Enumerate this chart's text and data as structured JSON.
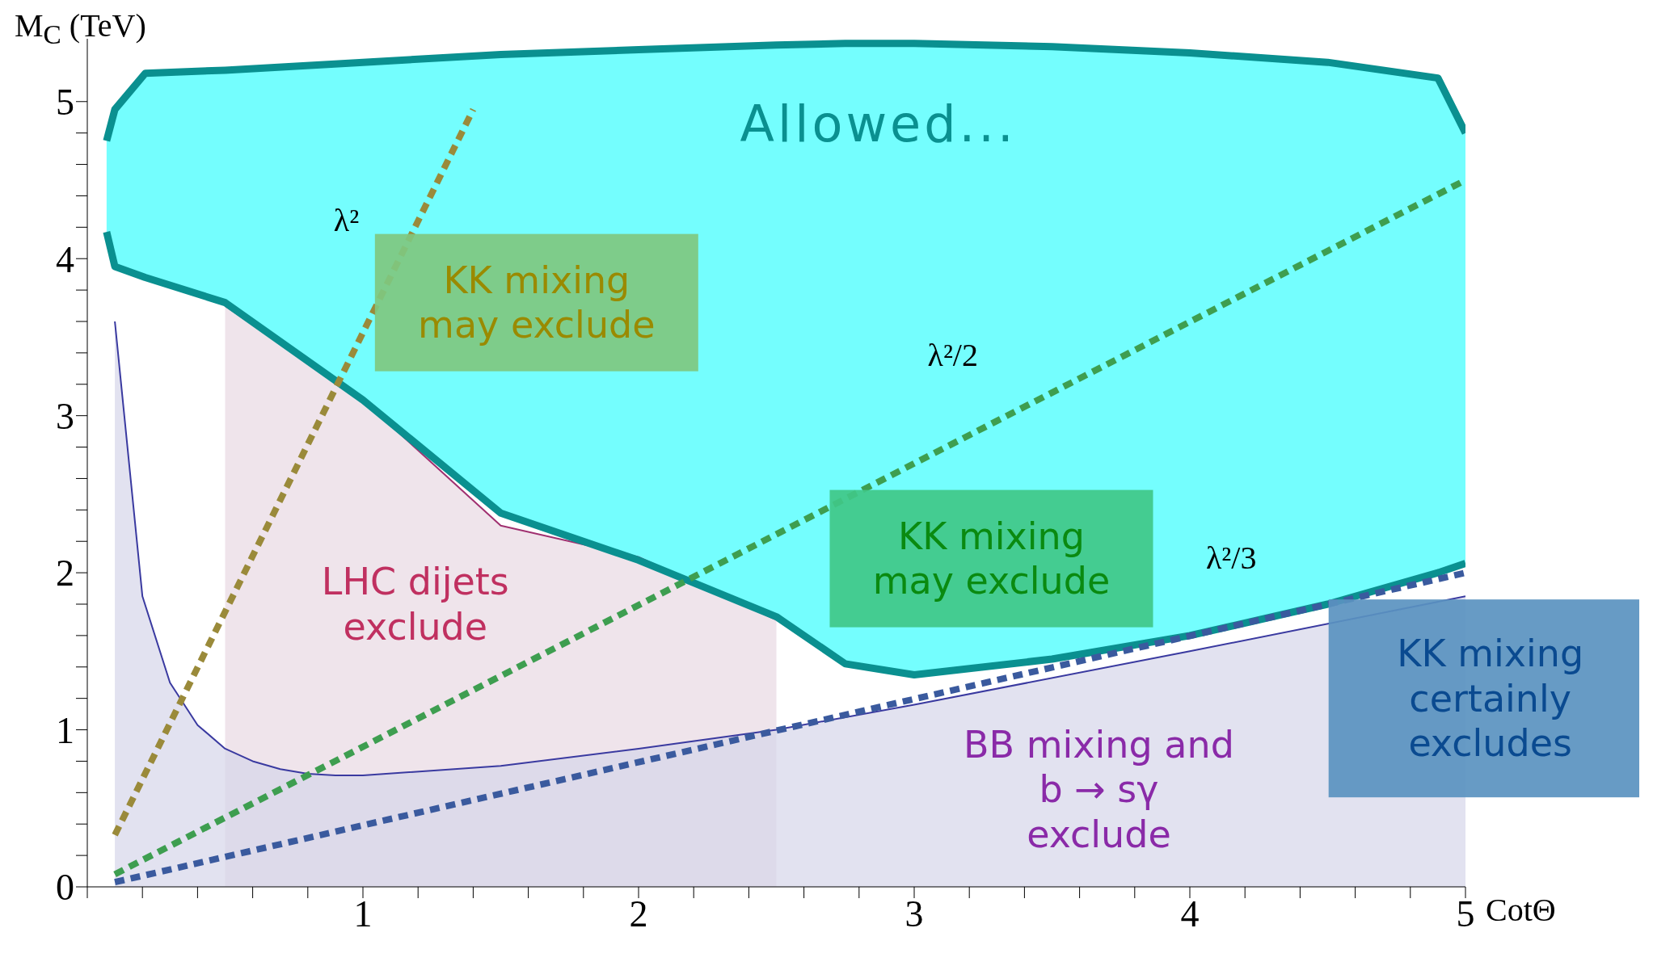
{
  "chart_data": {
    "type": "line",
    "xlabel": "CotΘ",
    "ylabel": "M$_{C}$ (TeV)",
    "xlim": [
      0,
      5
    ],
    "ylim": [
      0,
      5.4
    ],
    "xticks": [
      {
        "value": 0,
        "label": null
      },
      {
        "value": 0.2,
        "label": null
      },
      {
        "value": 0.4,
        "label": null
      },
      {
        "value": 0.6,
        "label": null
      },
      {
        "value": 0.8,
        "label": null
      },
      1,
      {
        "value": 1.2,
        "label": null
      },
      {
        "value": 1.4,
        "label": null
      },
      {
        "value": 1.6,
        "label": null
      },
      {
        "value": 1.8,
        "label": null
      },
      2,
      {
        "value": 2.2,
        "label": null
      },
      {
        "value": 2.4,
        "label": null
      },
      {
        "value": 2.6,
        "label": null
      },
      {
        "value": 2.8,
        "label": null
      },
      3,
      {
        "value": 3.2,
        "label": null
      },
      {
        "value": 3.4,
        "label": null
      },
      {
        "value": 3.6,
        "label": null
      },
      {
        "value": 3.8,
        "label": null
      },
      4,
      {
        "value": 4.2,
        "label": null
      },
      {
        "value": 4.4,
        "label": null
      },
      {
        "value": 4.6,
        "label": null
      },
      {
        "value": 4.8,
        "label": null
      },
      5
    ],
    "yticks": [
      0,
      {
        "value": 0.2,
        "label": null
      },
      {
        "value": 0.4,
        "label": null
      },
      {
        "value": 0.6,
        "label": null
      },
      {
        "value": 0.8,
        "label": null
      },
      1,
      {
        "value": 1.2,
        "label": null
      },
      {
        "value": 1.4,
        "label": null
      },
      {
        "value": 1.6,
        "label": null
      },
      {
        "value": 1.8,
        "label": null
      },
      2,
      {
        "value": 2.2,
        "label": null
      },
      {
        "value": 2.4,
        "label": null
      },
      {
        "value": 2.6,
        "label": null
      },
      {
        "value": 2.8,
        "label": null
      },
      3,
      {
        "value": 3.2,
        "label": null
      },
      {
        "value": 3.4,
        "label": null
      },
      {
        "value": 3.6,
        "label": null
      },
      {
        "value": 3.8,
        "label": null
      },
      4,
      {
        "value": 4.2,
        "label": null
      },
      {
        "value": 4.4,
        "label": null
      },
      {
        "value": 4.6,
        "label": null
      },
      {
        "value": 4.8,
        "label": null
      },
      5
    ],
    "grid": false,
    "legend": false,
    "marker": "none",
    "series": [
      {
        "type": "line",
        "color": "#0a9090",
        "x": [
          0.07,
          0.1,
          0.21,
          0.5,
          1.0,
          1.5,
          2.0,
          2.5,
          2.75,
          3.0,
          3.5,
          4.0,
          4.5,
          4.9,
          5.0
        ],
        "values": [
          4.75,
          4.95,
          5.18,
          5.2,
          5.25,
          5.3,
          5.33,
          5.36,
          5.37,
          5.37,
          5.35,
          5.31,
          5.25,
          5.15,
          4.8
        ]
      },
      {
        "type": "line",
        "color": "#0a9090",
        "x": [
          0.07,
          0.1,
          0.21,
          0.5,
          1.0,
          1.5,
          2.0,
          2.5,
          2.75,
          3.0,
          3.5,
          4.0,
          4.5,
          4.9,
          5.0
        ],
        "values": [
          4.17,
          3.95,
          3.88,
          3.72,
          3.1,
          2.38,
          2.08,
          1.72,
          1.42,
          1.35,
          1.45,
          1.6,
          1.8,
          2.0,
          2.06
        ],
        "lower": [
          4.17,
          3.95,
          3.88,
          3.72,
          3.1,
          2.38,
          2.08,
          1.72,
          1.42,
          1.35,
          1.45,
          1.6,
          1.8,
          2.0,
          2.06
        ],
        "upper": [
          4.75,
          4.95,
          5.18,
          5.2,
          5.25,
          5.3,
          5.33,
          5.36,
          5.37,
          5.37,
          5.35,
          5.31,
          5.25,
          5.15,
          4.8
        ]
      },
      {
        "type": "area",
        "color": "#e8d8e2",
        "x": [
          0.5,
          1.0,
          1.5,
          2.0,
          2.5
        ],
        "values": [
          3.7,
          3.1,
          2.3,
          2.1,
          1.7
        ]
      },
      {
        "type": "area",
        "color": "#d6d6ea",
        "x": [
          0.1,
          0.2,
          0.3,
          0.4,
          0.5,
          0.6,
          0.7,
          0.8,
          0.9,
          1.0,
          1.5,
          2.0,
          2.5,
          3.0,
          4.0,
          5.0
        ],
        "values": [
          3.6,
          1.85,
          1.3,
          1.03,
          0.88,
          0.8,
          0.75,
          0.72,
          0.71,
          0.71,
          0.77,
          0.88,
          1.0,
          1.16,
          1.5,
          1.85
        ]
      },
      {
        "type": "line",
        "color": "#9a8a3a",
        "line_style": "dashed",
        "x": [
          0.1,
          1.4
        ],
        "values": [
          0.33,
          4.95
        ]
      },
      {
        "type": "line",
        "color": "#3e9e50",
        "line_style": "dashed",
        "x": [
          0.1,
          5.0
        ],
        "values": [
          0.08,
          4.5
        ]
      },
      {
        "type": "line",
        "color": "#3a5a9e",
        "line_style": "dashed",
        "x": [
          0.1,
          5.0
        ],
        "values": [
          0.03,
          2.0
        ]
      }
    ],
    "annotations": [
      "Allowed...",
      "λ²",
      "KK mixing\nmay exclude",
      "λ²/2",
      "LHC dijets\nexclude",
      "KK mixing\nmay exclude",
      "λ²/3",
      "BB mixing and\nb → sγ\nexclude",
      "KK mixing\ncertainly\nexcludes"
    ]
  }
}
